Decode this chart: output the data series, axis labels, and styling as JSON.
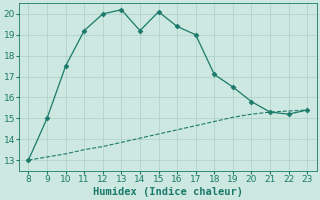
{
  "xlabel": "Humidex (Indice chaleur)",
  "x_main": [
    8,
    9,
    10,
    11,
    12,
    13,
    14,
    15,
    16,
    17,
    18,
    19,
    20,
    21,
    22,
    23
  ],
  "y_main": [
    13.0,
    15.0,
    17.5,
    19.2,
    20.0,
    20.2,
    19.2,
    20.1,
    19.4,
    19.0,
    17.1,
    16.5,
    15.8,
    15.3,
    15.2,
    15.4
  ],
  "x_ref": [
    8,
    9,
    10,
    11,
    12,
    13,
    14,
    15,
    16,
    17,
    18,
    19,
    20,
    21,
    22,
    23
  ],
  "y_ref": [
    13.0,
    13.15,
    13.3,
    13.5,
    13.65,
    13.85,
    14.05,
    14.25,
    14.45,
    14.65,
    14.85,
    15.05,
    15.2,
    15.3,
    15.35,
    15.4
  ],
  "line_color": "#1b7a6a",
  "bg_color": "#cce8e0",
  "grid_color": "#aacfc5",
  "xlim": [
    7.5,
    23.5
  ],
  "ylim": [
    12.5,
    20.5
  ],
  "xticks": [
    8,
    9,
    10,
    11,
    12,
    13,
    14,
    15,
    16,
    17,
    18,
    19,
    20,
    21,
    22,
    23
  ],
  "yticks": [
    13,
    14,
    15,
    16,
    17,
    18,
    19,
    20
  ],
  "tick_fontsize": 6.5,
  "xlabel_fontsize": 7.5
}
